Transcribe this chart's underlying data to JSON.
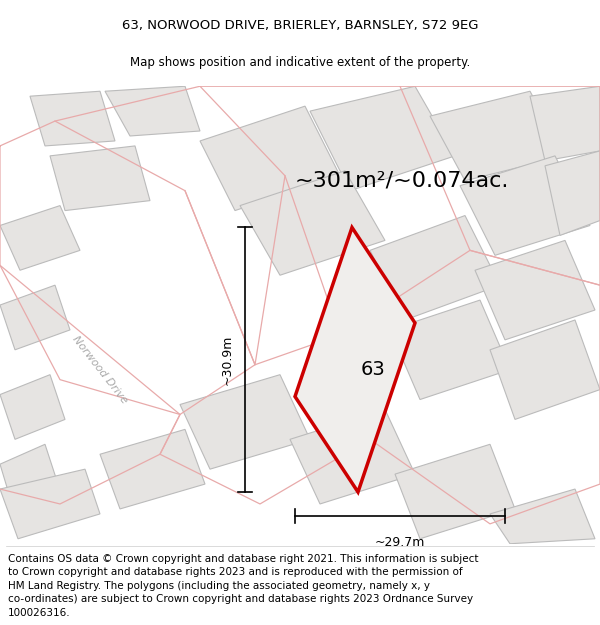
{
  "title_line1": "63, NORWOOD DRIVE, BRIERLEY, BARNSLEY, S72 9EG",
  "title_line2": "Map shows position and indicative extent of the property.",
  "area_text": "~301m²/~0.074ac.",
  "label_63": "63",
  "dim_width": "~29.7m",
  "dim_height": "~30.9m",
  "road_label": "Norwood Drive",
  "footer_lines": [
    "Contains OS data © Crown copyright and database right 2021. This information is subject",
    "to Crown copyright and database rights 2023 and is reproduced with the permission of",
    "HM Land Registry. The polygons (including the associated geometry, namely x, y",
    "co-ordinates) are subject to Crown copyright and database rights 2023 Ordnance Survey",
    "100026316."
  ],
  "map_bg": "#f5f3f1",
  "plot_border_color": "#cc0000",
  "bldg_fill": "#e6e4e2",
  "bldg_stroke_gray": "#bbbbbb",
  "bldg_stroke_pink": "#e8aaaa",
  "title_fontsize": 9.5,
  "subtitle_fontsize": 8.5,
  "area_fontsize": 16,
  "label_fontsize": 14,
  "dim_fontsize": 9,
  "footer_fontsize": 7.5,
  "road_fontsize": 8
}
